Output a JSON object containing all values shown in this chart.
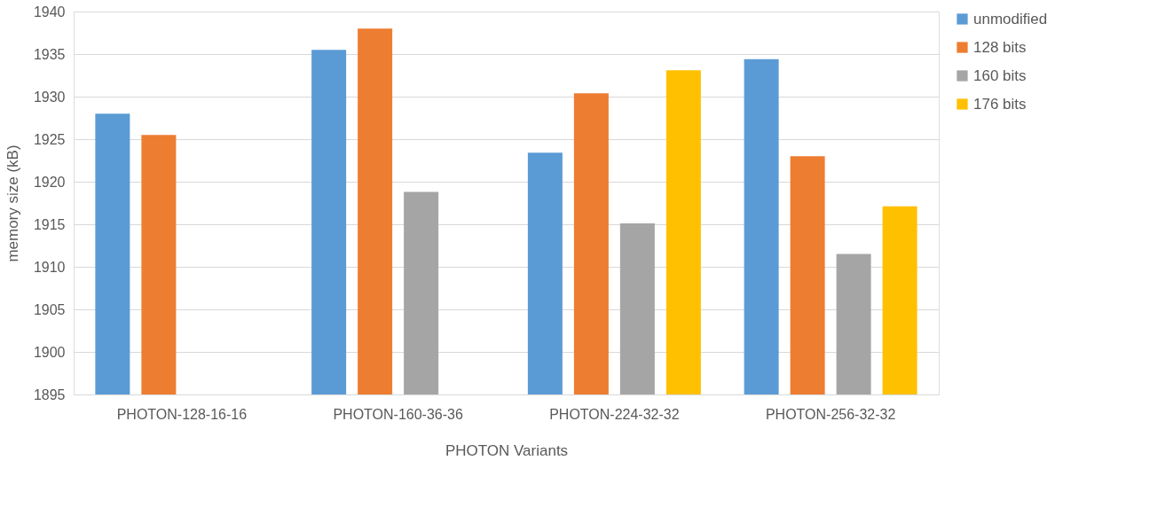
{
  "chart_data": {
    "type": "bar",
    "xlabel": "PHOTON Variants",
    "ylabel": "memory size (kB)",
    "categories": [
      "PHOTON-128-16-16",
      "PHOTON-160-36-36",
      "PHOTON-224-32-32",
      "PHOTON-256-32-32"
    ],
    "series": [
      {
        "name": "unmodified",
        "color": "#5b9bd5",
        "values": [
          1928.0,
          1935.5,
          1923.4,
          1934.4
        ]
      },
      {
        "name": "128 bits",
        "color": "#ed7d31",
        "values": [
          1925.5,
          1938.0,
          1930.4,
          1923.0
        ]
      },
      {
        "name": "160 bits",
        "color": "#a5a5a5",
        "values": [
          null,
          1918.8,
          1915.1,
          1911.5
        ]
      },
      {
        "name": "176 bits",
        "color": "#ffc000",
        "values": [
          null,
          null,
          1933.1,
          1917.1
        ]
      }
    ],
    "ylim": [
      1895,
      1940
    ],
    "yticks": [
      1895,
      1900,
      1905,
      1910,
      1915,
      1920,
      1925,
      1930,
      1935,
      1940
    ],
    "grid": "y",
    "legend": "right"
  }
}
